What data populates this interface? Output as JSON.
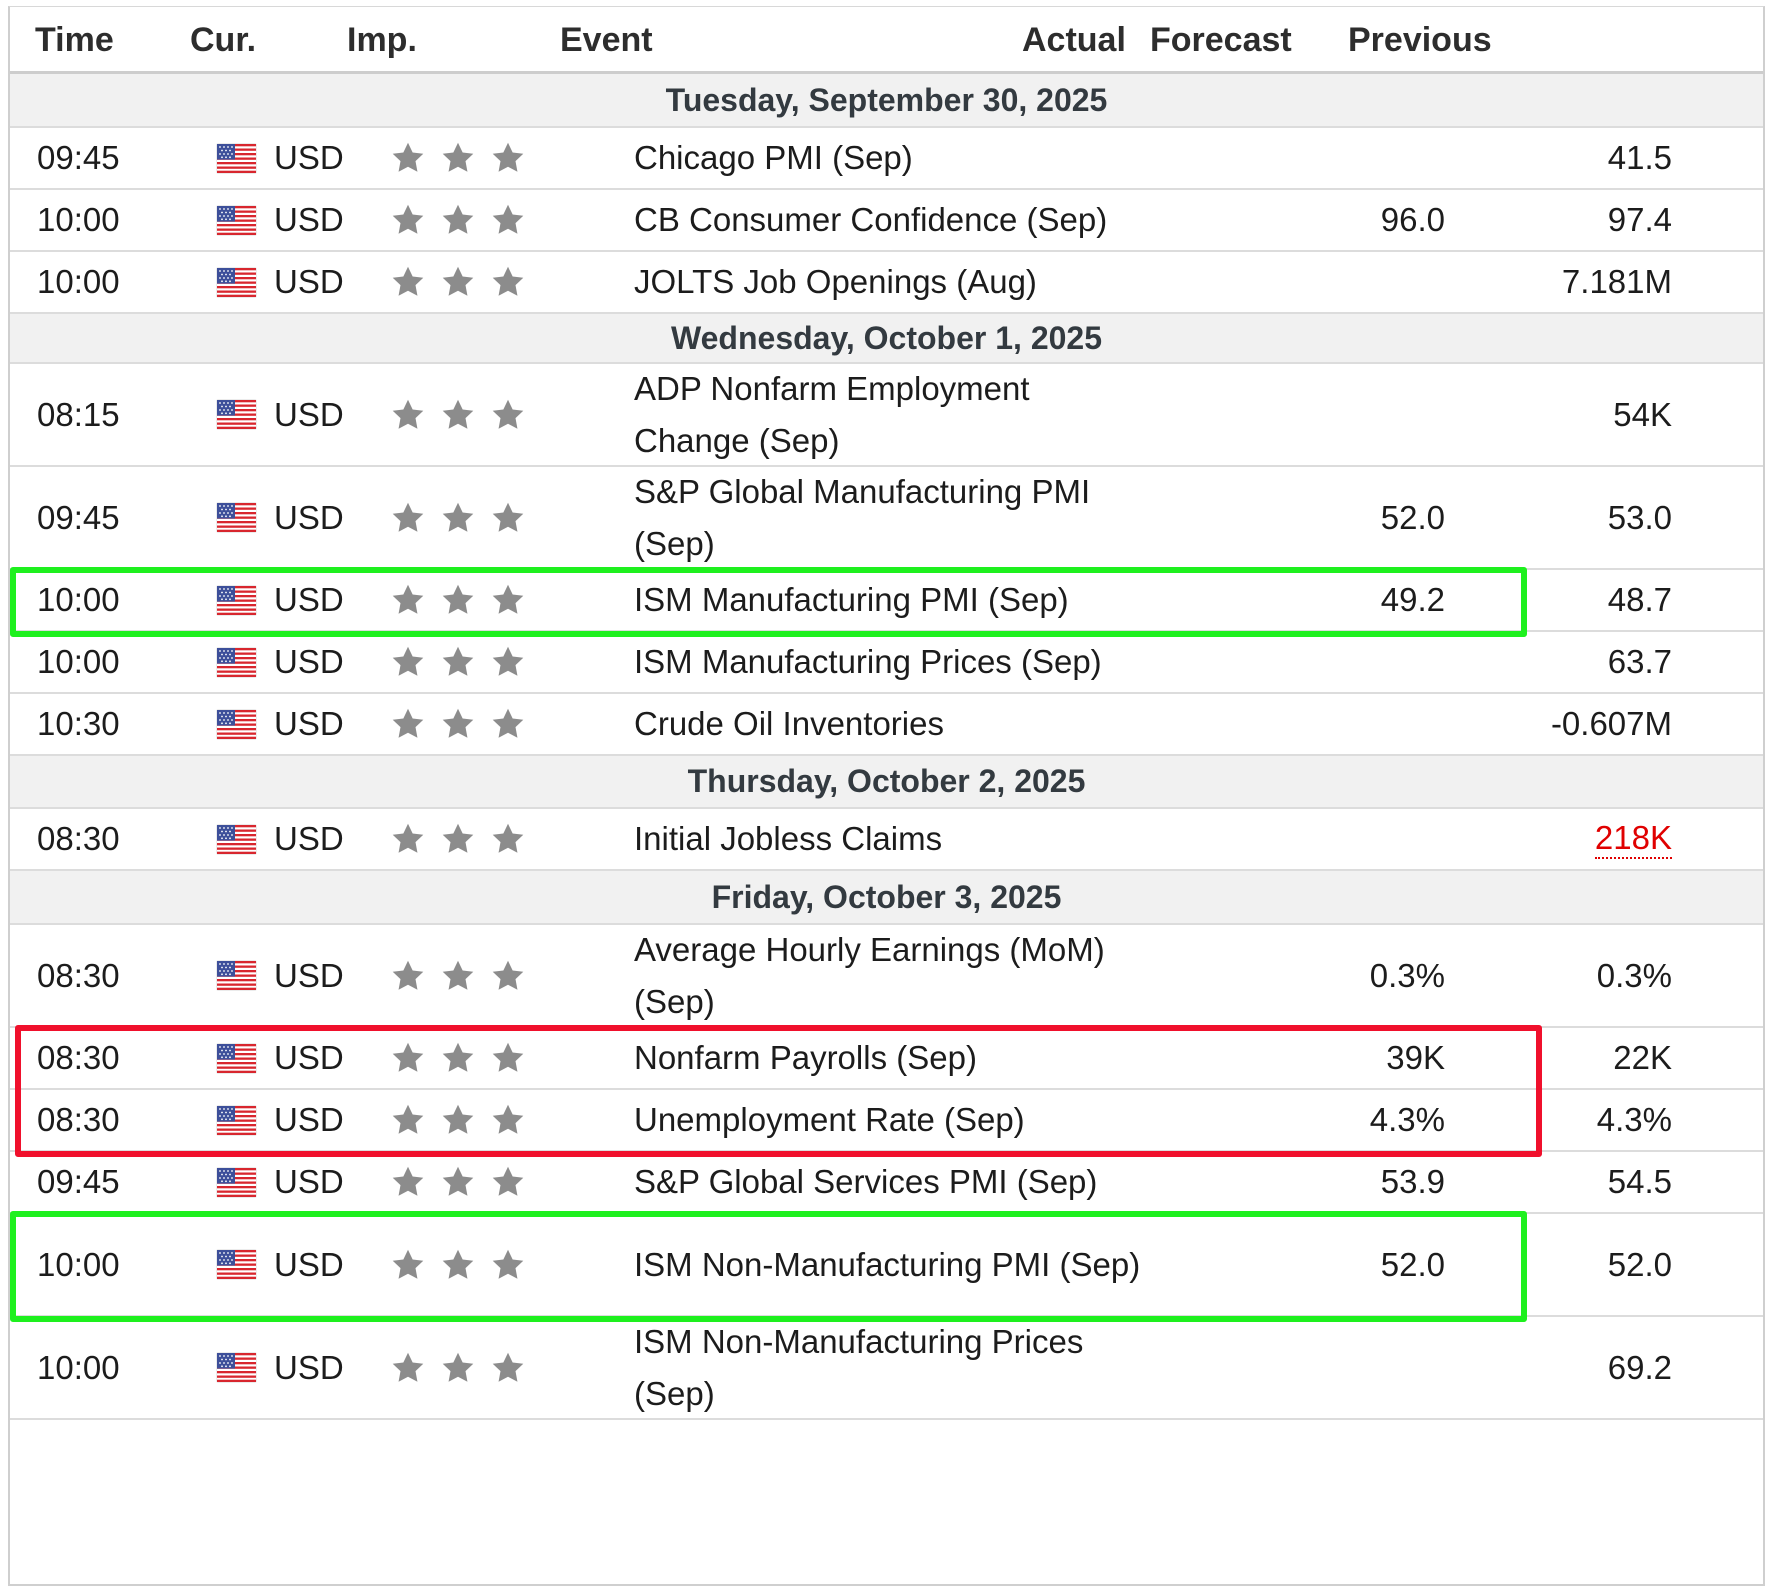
{
  "header": {
    "time": "Time",
    "currency": "Cur.",
    "importance": "Imp.",
    "event": "Event",
    "actual": "Actual",
    "forecast": "Forecast",
    "previous": "Previous"
  },
  "colors": {
    "highlight_green": "#1ef01e",
    "highlight_red": "#f0102c",
    "negative_value": "#e00000",
    "day_row_bg": "#f1f1f1",
    "star_gray": "#8c8c8c"
  },
  "icons": {
    "flag": "us-flag-icon",
    "importance": "star-icon"
  },
  "days": [
    {
      "date": "Tuesday, September 30, 2025",
      "events": [
        {
          "time": "09:45",
          "currency": "USD",
          "stars": 3,
          "event": "Chicago PMI (Sep)",
          "actual": "",
          "forecast": "",
          "previous": "41.5"
        },
        {
          "time": "10:00",
          "currency": "USD",
          "stars": 3,
          "event": "CB Consumer Confidence (Sep)",
          "actual": "",
          "forecast": "96.0",
          "previous": "97.4"
        },
        {
          "time": "10:00",
          "currency": "USD",
          "stars": 3,
          "event": "JOLTS Job Openings (Aug)",
          "actual": "",
          "forecast": "",
          "previous": "7.181M"
        }
      ]
    },
    {
      "date": "Wednesday, October 1, 2025",
      "events": [
        {
          "time": "08:15",
          "currency": "USD",
          "stars": 3,
          "event": "ADP Nonfarm Employment Change (Sep)",
          "actual": "",
          "forecast": "",
          "previous": "54K"
        },
        {
          "time": "09:45",
          "currency": "USD",
          "stars": 3,
          "event": "S&P Global Manufacturing PMI (Sep)",
          "actual": "",
          "forecast": "52.0",
          "previous": "53.0"
        },
        {
          "time": "10:00",
          "currency": "USD",
          "stars": 3,
          "event": "ISM Manufacturing PMI (Sep)",
          "actual": "",
          "forecast": "49.2",
          "previous": "48.7"
        },
        {
          "time": "10:00",
          "currency": "USD",
          "stars": 3,
          "event": "ISM Manufacturing Prices (Sep)",
          "actual": "",
          "forecast": "",
          "previous": "63.7"
        },
        {
          "time": "10:30",
          "currency": "USD",
          "stars": 3,
          "event": "Crude Oil Inventories",
          "actual": "",
          "forecast": "",
          "previous": "-0.607M"
        }
      ]
    },
    {
      "date": "Thursday, October 2, 2025",
      "events": [
        {
          "time": "08:30",
          "currency": "USD",
          "stars": 3,
          "event": "Initial Jobless Claims",
          "actual": "",
          "forecast": "",
          "previous": "218K",
          "previous_revised": true
        }
      ]
    },
    {
      "date": "Friday, October 3, 2025",
      "events": [
        {
          "time": "08:30",
          "currency": "USD",
          "stars": 3,
          "event": "Average Hourly Earnings (MoM) (Sep)",
          "actual": "",
          "forecast": "0.3%",
          "previous": "0.3%"
        },
        {
          "time": "08:30",
          "currency": "USD",
          "stars": 3,
          "event": "Nonfarm Payrolls (Sep)",
          "actual": "",
          "forecast": "39K",
          "previous": "22K"
        },
        {
          "time": "08:30",
          "currency": "USD",
          "stars": 3,
          "event": "Unemployment Rate (Sep)",
          "actual": "",
          "forecast": "4.3%",
          "previous": "4.3%"
        },
        {
          "time": "09:45",
          "currency": "USD",
          "stars": 3,
          "event": "S&P Global Services PMI (Sep)",
          "actual": "",
          "forecast": "53.9",
          "previous": "54.5"
        },
        {
          "time": "10:00",
          "currency": "USD",
          "stars": 3,
          "event": "ISM Non-Manufacturing PMI (Sep)",
          "actual": "",
          "forecast": "52.0",
          "previous": "52.0"
        },
        {
          "time": "10:00",
          "currency": "USD",
          "stars": 3,
          "event": "ISM Non-Manufacturing Prices (Sep)",
          "actual": "",
          "forecast": "",
          "previous": "69.2"
        }
      ]
    }
  ],
  "highlights": [
    {
      "color": "green",
      "events": [
        "ISM Manufacturing PMI (Sep)"
      ]
    },
    {
      "color": "red",
      "events": [
        "Nonfarm Payrolls (Sep)",
        "Unemployment Rate (Sep)"
      ]
    },
    {
      "color": "green",
      "events": [
        "ISM Non-Manufacturing PMI (Sep)"
      ]
    }
  ]
}
